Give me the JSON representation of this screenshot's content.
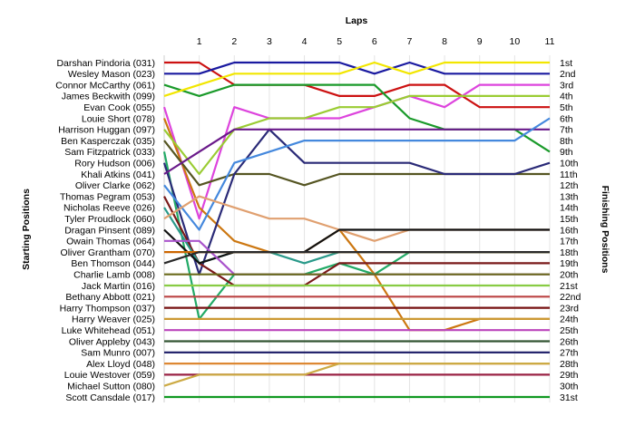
{
  "chart_data": {
    "type": "line",
    "title": "",
    "xlabel": "Laps",
    "ylabel_left": "Starting Positions",
    "ylabel_right": "Finishing Positions",
    "x": [
      0,
      1,
      2,
      3,
      4,
      5,
      6,
      7,
      8,
      9,
      10,
      11
    ],
    "x_tick_labels": [
      "1",
      "2",
      "3",
      "4",
      "5",
      "6",
      "7",
      "8",
      "9",
      "10",
      "11"
    ],
    "grid": true,
    "y_inverted": true,
    "ylim": [
      1,
      31
    ],
    "finishing_labels": [
      "1st",
      "2nd",
      "3rd",
      "4th",
      "5th",
      "6th",
      "7th",
      "8th",
      "9th",
      "10th",
      "11th",
      "12th",
      "13th",
      "14th",
      "15th",
      "16th",
      "17th",
      "18th",
      "19th",
      "20th",
      "21st",
      "22nd",
      "23rd",
      "24th",
      "25th",
      "26th",
      "27th",
      "28th",
      "29th",
      "30th",
      "31st"
    ],
    "series": [
      {
        "name": "Darshan Pindoria (031)",
        "color": "#cc1111",
        "values": [
          1,
          1,
          3,
          3,
          3,
          4,
          4,
          3,
          3,
          5,
          5,
          5
        ]
      },
      {
        "name": "Wesley Mason (023)",
        "color": "#1a1aa0",
        "values": [
          2,
          2,
          1,
          1,
          1,
          1,
          2,
          1,
          2,
          2,
          2,
          2
        ]
      },
      {
        "name": "Connor McCarthy (061)",
        "color": "#1a9a2a",
        "values": [
          3,
          4,
          3,
          3,
          3,
          3,
          3,
          6,
          7,
          7,
          7,
          9
        ]
      },
      {
        "name": "James Beckwith (099)",
        "color": "#f2e600",
        "values": [
          4,
          3,
          2,
          2,
          2,
          2,
          1,
          2,
          1,
          1,
          1,
          1
        ]
      },
      {
        "name": "Evan Cook (055)",
        "color": "#dd44dd",
        "values": [
          5,
          15,
          5,
          6,
          6,
          6,
          5,
          4,
          5,
          3,
          3,
          3
        ]
      },
      {
        "name": "Louie Short (078)",
        "color": "#cc7711",
        "values": [
          6,
          14,
          17,
          18,
          18,
          16,
          20,
          25,
          25,
          24,
          24,
          24
        ]
      },
      {
        "name": "Harrison Huggan (097)",
        "color": "#9acc33",
        "values": [
          7,
          11,
          7,
          6,
          6,
          5,
          5,
          4,
          4,
          4,
          4,
          4
        ]
      },
      {
        "name": "Ben Kasperczak (035)",
        "color": "#555522",
        "values": [
          8,
          12,
          11,
          11,
          12,
          11,
          11,
          11,
          11,
          11,
          11,
          11
        ]
      },
      {
        "name": "Sam Fitzpatrick (033)",
        "color": "#22aa66",
        "values": [
          9,
          24,
          20,
          20,
          20,
          19,
          20,
          18,
          18,
          18,
          18,
          18
        ]
      },
      {
        "name": "Rory Hudson (006)",
        "color": "#2a2a77",
        "values": [
          10,
          20,
          11,
          7,
          10,
          10,
          10,
          10,
          11,
          11,
          11,
          10
        ]
      },
      {
        "name": "Khali Atkins (041)",
        "color": "#6a1a8a",
        "values": [
          11,
          9,
          7,
          7,
          7,
          7,
          7,
          7,
          7,
          7,
          7,
          7
        ]
      },
      {
        "name": "Oliver Clarke (062)",
        "color": "#4488dd",
        "values": [
          12,
          16,
          10,
          9,
          8,
          8,
          8,
          8,
          8,
          8,
          8,
          6
        ]
      },
      {
        "name": "Thomas Pegram (053)",
        "color": "#7a1a1a",
        "values": [
          13,
          19,
          21,
          21,
          21,
          19,
          19,
          19,
          19,
          19,
          19,
          19
        ]
      },
      {
        "name": "Nicholas Reeve (026)",
        "color": "#2a9a8a",
        "values": [
          14,
          19,
          18,
          18,
          19,
          18,
          18,
          18,
          18,
          18,
          18,
          18
        ]
      },
      {
        "name": "Tyler Proudlock (060)",
        "color": "#e0a070",
        "values": [
          15,
          13,
          14,
          15,
          15,
          16,
          17,
          16,
          16,
          16,
          16,
          16
        ]
      },
      {
        "name": "Dragan Pinsent (089)",
        "color": "#111111",
        "values": [
          16,
          19,
          18,
          18,
          18,
          16,
          16,
          16,
          16,
          16,
          16,
          16
        ]
      },
      {
        "name": "Owain Thomas (064)",
        "color": "#aa55cc",
        "values": [
          17,
          17,
          20,
          20,
          20,
          20,
          20,
          20,
          20,
          20,
          20,
          20
        ]
      },
      {
        "name": "Oliver Grantham (070)",
        "color": "#cc6600",
        "values": [
          18,
          18,
          18,
          18,
          18,
          18,
          18,
          18,
          18,
          18,
          18,
          18
        ]
      },
      {
        "name": "Ben Thomson (044)",
        "color": "#2a2a2a",
        "values": [
          19,
          18,
          18,
          18,
          18,
          18,
          18,
          18,
          18,
          18,
          18,
          18
        ]
      },
      {
        "name": "Charlie Lamb (008)",
        "color": "#6a6a1a",
        "values": [
          20,
          20,
          20,
          20,
          20,
          20,
          20,
          20,
          20,
          20,
          20,
          20
        ]
      },
      {
        "name": "Jack Martin (016)",
        "color": "#88cc44",
        "values": [
          21,
          21,
          21,
          21,
          21,
          21,
          21,
          21,
          21,
          21,
          21,
          21
        ]
      },
      {
        "name": "Bethany Abbott (021)",
        "color": "#bb4444",
        "values": [
          22,
          22,
          22,
          22,
          22,
          22,
          22,
          22,
          22,
          22,
          22,
          22
        ]
      },
      {
        "name": "Harry Thompson (037)",
        "color": "#771111",
        "values": [
          23,
          23,
          23,
          23,
          23,
          23,
          23,
          23,
          23,
          23,
          23,
          23
        ]
      },
      {
        "name": "Harry Weaver (025)",
        "color": "#cc9933",
        "values": [
          24,
          24,
          24,
          24,
          24,
          24,
          24,
          24,
          24,
          24,
          24,
          24
        ]
      },
      {
        "name": "Luke Whitehead (051)",
        "color": "#bb44bb",
        "values": [
          25,
          25,
          25,
          25,
          25,
          25,
          25,
          25,
          25,
          25,
          25,
          25
        ]
      },
      {
        "name": "Oliver Appleby (043)",
        "color": "#335533",
        "values": [
          26,
          26,
          26,
          26,
          26,
          26,
          26,
          26,
          26,
          26,
          26,
          26
        ]
      },
      {
        "name": "Sam Munro (007)",
        "color": "#1a1a66",
        "values": [
          27,
          27,
          27,
          27,
          27,
          27,
          27,
          27,
          27,
          27,
          27,
          27
        ]
      },
      {
        "name": "Alex Lloyd (048)",
        "color": "#dd8833",
        "values": [
          28,
          28,
          28,
          28,
          28,
          28,
          28,
          28,
          28,
          28,
          28,
          28
        ]
      },
      {
        "name": "Louie Westover (059)",
        "color": "#992244",
        "values": [
          29,
          29,
          29,
          29,
          29,
          29,
          29,
          29,
          29,
          29,
          29,
          29
        ]
      },
      {
        "name": "Michael Sutton (080)",
        "color": "#ccaa44",
        "values": [
          30,
          29,
          29,
          29,
          29,
          28,
          28,
          28,
          28,
          28,
          28,
          28
        ]
      },
      {
        "name": "Scott Cansdale (017)",
        "color": "#119922",
        "values": [
          31,
          31,
          31,
          31,
          31,
          31,
          31,
          31,
          31,
          31,
          31,
          31
        ]
      }
    ]
  }
}
